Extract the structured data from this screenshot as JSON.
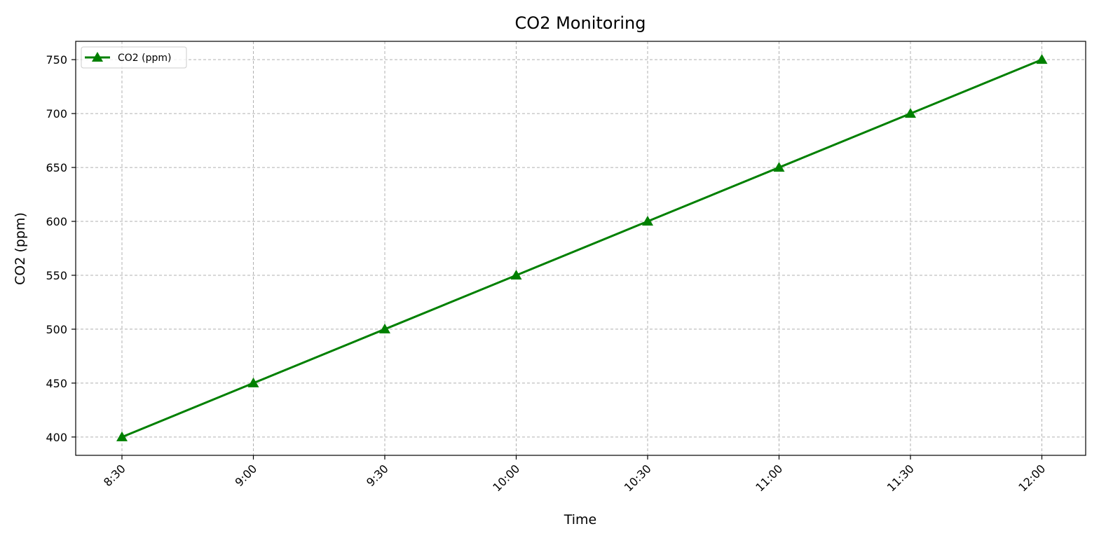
{
  "chart_data": {
    "type": "line",
    "title": "CO2 Monitoring",
    "xlabel": "Time",
    "ylabel": "CO2 (ppm)",
    "categories": [
      "8:30",
      "9:00",
      "9:30",
      "10:00",
      "10:30",
      "11:00",
      "11:30",
      "12:00"
    ],
    "series": [
      {
        "name": "CO2 (ppm)",
        "values": [
          400,
          450,
          500,
          550,
          600,
          650,
          700,
          750
        ],
        "color": "#008000",
        "marker": "triangle-up"
      }
    ],
    "yticks": [
      400,
      450,
      500,
      550,
      600,
      650,
      700,
      750
    ],
    "ylim": [
      383,
      767
    ],
    "grid": true,
    "legend": {
      "placement": "top-left"
    },
    "x_tick_rotation": -45
  }
}
